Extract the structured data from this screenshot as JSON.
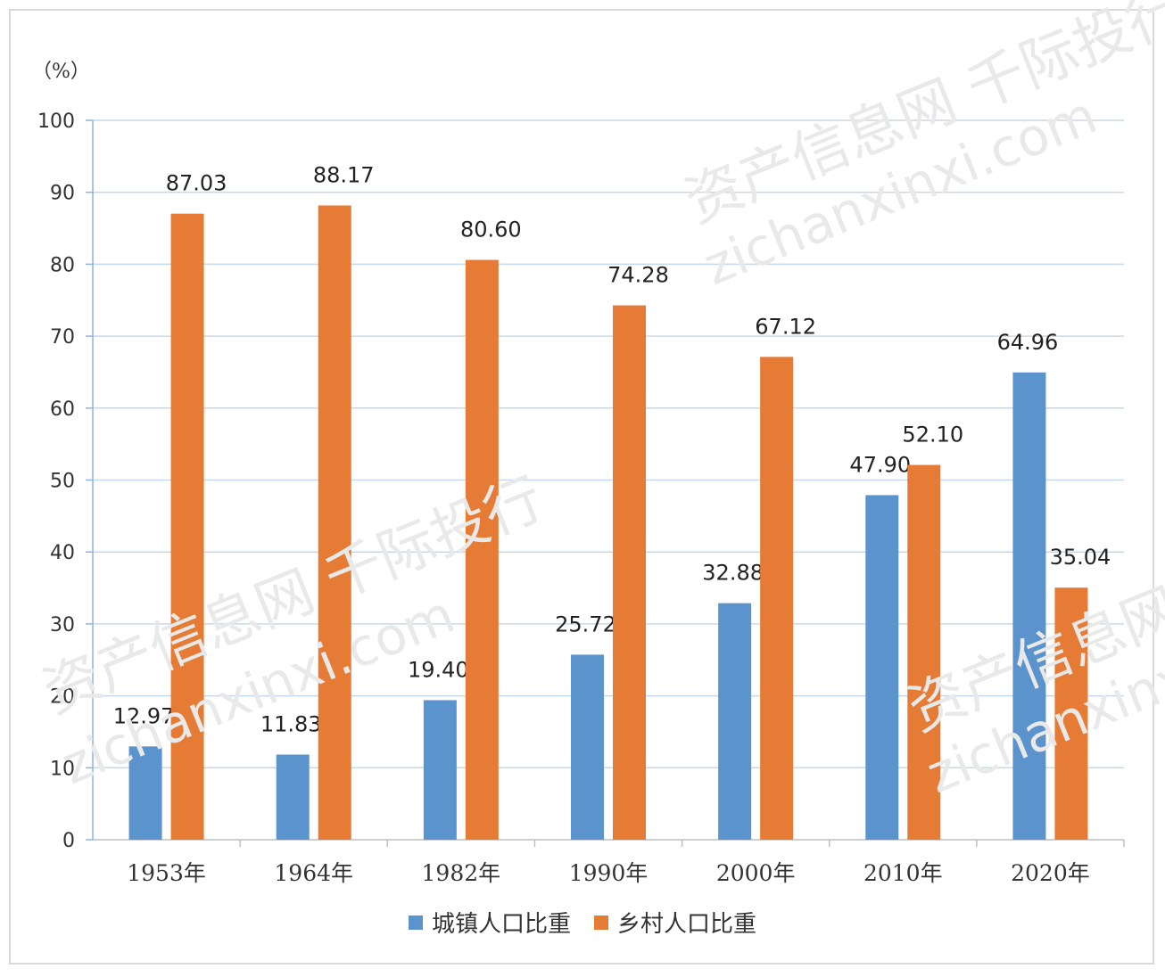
{
  "chart_data": {
    "type": "bar",
    "unit_label": "（%）",
    "categories": [
      "1953年",
      "1964年",
      "1982年",
      "1990年",
      "2000年",
      "2010年",
      "2020年"
    ],
    "series": [
      {
        "name": "城镇人口比重",
        "color": "#5B93CD",
        "values": [
          12.97,
          11.83,
          19.4,
          25.72,
          32.88,
          47.9,
          64.96
        ],
        "labels": [
          "12.97",
          "11.83",
          "19.40",
          "25.72",
          "32.88",
          "47.90",
          "64.96"
        ]
      },
      {
        "name": "乡村人口比重",
        "color": "#E57B34",
        "values": [
          87.03,
          88.17,
          80.6,
          74.28,
          67.12,
          52.1,
          35.04
        ],
        "labels": [
          "87.03",
          "88.17",
          "80.60",
          "74.28",
          "67.12",
          "52.10",
          "35.04"
        ]
      }
    ],
    "yticks": [
      "0",
      "10",
      "20",
      "30",
      "40",
      "50",
      "60",
      "70",
      "80",
      "90",
      "100"
    ],
    "ylim": [
      0,
      100
    ],
    "grid": true,
    "legend_position": "bottom"
  },
  "watermark": {
    "lines": [
      "资产信息网 千际投行",
      "zichanxinxi.com"
    ]
  }
}
